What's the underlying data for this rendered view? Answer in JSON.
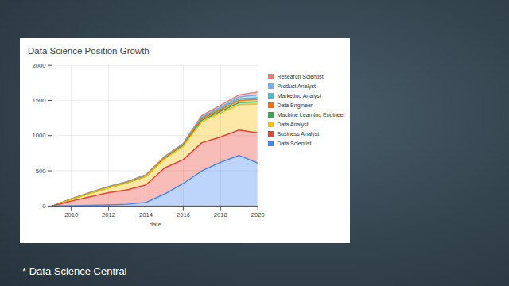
{
  "chart_data": {
    "type": "area",
    "title": "Data Science Position Growth",
    "x_label": "date",
    "caption": "* Data Science Central",
    "x": [
      2009,
      2010,
      2011,
      2012,
      2013,
      2014,
      2015,
      2016,
      2017,
      2018,
      2019,
      2020
    ],
    "xlim": [
      2009,
      2020
    ],
    "xticks": [
      2010,
      2012,
      2014,
      2016,
      2018,
      2020
    ],
    "ylim": [
      0,
      2000
    ],
    "yticks": [
      0,
      500,
      1000,
      1500,
      2000
    ],
    "grid": true,
    "stacked": true,
    "legend": "right",
    "series": [
      {
        "name": "Research Scientist",
        "color": "#e67c73",
        "values": [
          0,
          2,
          5,
          5,
          5,
          10,
          10,
          10,
          20,
          25,
          30,
          40
        ]
      },
      {
        "name": "Product Analyst",
        "color": "#7baaf7",
        "values": [
          0,
          1,
          2,
          3,
          3,
          5,
          5,
          5,
          10,
          15,
          25,
          40
        ]
      },
      {
        "name": "Marketing Analyst",
        "color": "#46bdc6",
        "values": [
          0,
          2,
          3,
          5,
          5,
          5,
          5,
          7,
          15,
          20,
          25,
          25
        ]
      },
      {
        "name": "Data Engineer",
        "color": "#ff6d01",
        "values": [
          0,
          2,
          3,
          5,
          5,
          5,
          8,
          8,
          20,
          25,
          30,
          35
        ]
      },
      {
        "name": "Machine Learning Engineer",
        "color": "#34a853",
        "values": [
          0,
          0,
          0,
          0,
          0,
          0,
          5,
          10,
          20,
          25,
          30,
          30
        ]
      },
      {
        "name": "Data Analyst",
        "color": "#fbbc04",
        "values": [
          0,
          25,
          50,
          70,
          100,
          120,
          130,
          190,
          300,
          340,
          360,
          410
        ]
      },
      {
        "name": "Business Analyst",
        "color": "#ea4335",
        "values": [
          0,
          65,
          120,
          175,
          205,
          250,
          370,
          340,
          400,
          360,
          360,
          430
        ]
      },
      {
        "name": "Data Scientist",
        "color": "#4285f4",
        "values": [
          0,
          5,
          10,
          15,
          25,
          50,
          170,
          320,
          500,
          620,
          720,
          610
        ]
      }
    ]
  }
}
